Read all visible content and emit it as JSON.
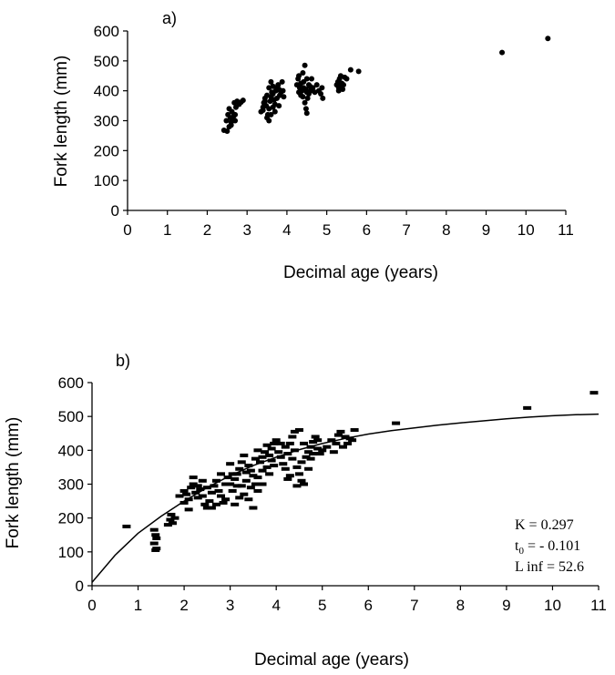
{
  "chart_data": [
    {
      "type": "scatter",
      "panel_label": "a)",
      "xlabel": "Decimal age (years)",
      "ylabel": "Fork length (mm)",
      "xlim": [
        0,
        11
      ],
      "ylim": [
        0,
        600
      ],
      "xticks": [
        "0",
        "1",
        "2",
        "3",
        "4",
        "5",
        "6",
        "7",
        "8",
        "9",
        "10",
        "11"
      ],
      "yticks": [
        "0",
        "100",
        "200",
        "300",
        "400",
        "500",
        "600"
      ],
      "marker": "dot",
      "points": [
        [
          2.42,
          268
        ],
        [
          2.5,
          265
        ],
        [
          2.55,
          280
        ],
        [
          2.48,
          300
        ],
        [
          2.6,
          295
        ],
        [
          2.52,
          320
        ],
        [
          2.58,
          310
        ],
        [
          2.62,
          330
        ],
        [
          2.55,
          340
        ],
        [
          2.65,
          305
        ],
        [
          2.7,
          320
        ],
        [
          2.72,
          345
        ],
        [
          2.68,
          360
        ],
        [
          2.75,
          365
        ],
        [
          2.8,
          355
        ],
        [
          2.85,
          362
        ],
        [
          2.9,
          368
        ],
        [
          2.6,
          285
        ],
        [
          2.66,
          315
        ],
        [
          2.7,
          300
        ],
        [
          3.35,
          330
        ],
        [
          3.4,
          345
        ],
        [
          3.42,
          360
        ],
        [
          3.45,
          375
        ],
        [
          3.5,
          385
        ],
        [
          3.48,
          350
        ],
        [
          3.52,
          320
        ],
        [
          3.55,
          340
        ],
        [
          3.58,
          365
        ],
        [
          3.6,
          380
        ],
        [
          3.62,
          395
        ],
        [
          3.55,
          410
        ],
        [
          3.6,
          430
        ],
        [
          3.65,
          390
        ],
        [
          3.68,
          370
        ],
        [
          3.7,
          355
        ],
        [
          3.72,
          400
        ],
        [
          3.75,
          410
        ],
        [
          3.78,
          420
        ],
        [
          3.8,
          405
        ],
        [
          3.82,
          385
        ],
        [
          3.85,
          395
        ],
        [
          3.88,
          430
        ],
        [
          3.9,
          400
        ],
        [
          3.92,
          380
        ],
        [
          3.5,
          310
        ],
        [
          3.55,
          300
        ],
        [
          3.6,
          320
        ],
        [
          3.65,
          345
        ],
        [
          3.7,
          330
        ],
        [
          3.4,
          335
        ],
        [
          3.45,
          365
        ],
        [
          3.65,
          415
        ],
        [
          3.75,
          375
        ],
        [
          3.8,
          350
        ],
        [
          4.25,
          420
        ],
        [
          4.28,
          440
        ],
        [
          4.3,
          395
        ],
        [
          4.32,
          410
        ],
        [
          4.35,
          385
        ],
        [
          4.4,
          460
        ],
        [
          4.42,
          430
        ],
        [
          4.45,
          485
        ],
        [
          4.48,
          405
        ],
        [
          4.5,
          395
        ],
        [
          4.52,
          375
        ],
        [
          4.55,
          420
        ],
        [
          4.58,
          415
        ],
        [
          4.6,
          400
        ],
        [
          4.62,
          440
        ],
        [
          4.45,
          360
        ],
        [
          4.48,
          340
        ],
        [
          4.5,
          325
        ],
        [
          4.4,
          380
        ],
        [
          4.35,
          425
        ],
        [
          4.3,
          450
        ],
        [
          4.55,
          390
        ],
        [
          4.65,
          410
        ],
        [
          4.7,
          395
        ],
        [
          4.75,
          420
        ],
        [
          4.5,
          440
        ],
        [
          4.38,
          400
        ],
        [
          4.42,
          410
        ],
        [
          4.8,
          400
        ],
        [
          4.85,
          390
        ],
        [
          4.88,
          410
        ],
        [
          4.9,
          375
        ],
        [
          5.25,
          420
        ],
        [
          5.28,
          430
        ],
        [
          5.3,
          410
        ],
        [
          5.32,
          440
        ],
        [
          5.35,
          450
        ],
        [
          5.38,
          425
        ],
        [
          5.4,
          405
        ],
        [
          5.42,
          420
        ],
        [
          5.45,
          445
        ],
        [
          5.5,
          440
        ],
        [
          5.3,
          400
        ],
        [
          5.35,
          415
        ],
        [
          5.6,
          470
        ],
        [
          5.8,
          465
        ],
        [
          9.4,
          528
        ],
        [
          10.55,
          575
        ]
      ]
    },
    {
      "type": "scatter",
      "panel_label": "b)",
      "xlabel": "Decimal age (years)",
      "ylabel": "Fork length (mm)",
      "xlim": [
        0,
        11
      ],
      "ylim": [
        0,
        600
      ],
      "xticks": [
        "0",
        "1",
        "2",
        "3",
        "4",
        "5",
        "6",
        "7",
        "8",
        "9",
        "10",
        "11"
      ],
      "yticks": [
        "0",
        "100",
        "200",
        "300",
        "400",
        "500",
        "600"
      ],
      "marker": "dash",
      "annotations": {
        "k": "K = 0.297",
        "t0_prefix": "t",
        "t0_sub": "0",
        "t0_suffix": " = - 0.101",
        "linf": "L inf = 52.6"
      },
      "fit_curve": [
        [
          0,
          10
        ],
        [
          0.5,
          90
        ],
        [
          1,
          155
        ],
        [
          1.5,
          205
        ],
        [
          2,
          250
        ],
        [
          2.5,
          290
        ],
        [
          3,
          325
        ],
        [
          3.5,
          355
        ],
        [
          4,
          380
        ],
        [
          4.5,
          402
        ],
        [
          5,
          420
        ],
        [
          5.5,
          435
        ],
        [
          6,
          448
        ],
        [
          6.5,
          458
        ],
        [
          7,
          466
        ],
        [
          7.5,
          474
        ],
        [
          8,
          481
        ],
        [
          8.5,
          487
        ],
        [
          9,
          493
        ],
        [
          9.5,
          498
        ],
        [
          10,
          502
        ],
        [
          10.5,
          505
        ],
        [
          11,
          507
        ]
      ],
      "points": [
        [
          0.75,
          175
        ],
        [
          1.35,
          165
        ],
        [
          1.38,
          150
        ],
        [
          1.4,
          140
        ],
        [
          1.35,
          125
        ],
        [
          1.4,
          110
        ],
        [
          1.38,
          105
        ],
        [
          1.65,
          180
        ],
        [
          1.7,
          195
        ],
        [
          1.75,
          185
        ],
        [
          1.8,
          200
        ],
        [
          1.72,
          210
        ],
        [
          1.9,
          265
        ],
        [
          2.0,
          280
        ],
        [
          2.05,
          270
        ],
        [
          2.1,
          255
        ],
        [
          2.15,
          290
        ],
        [
          2.2,
          300
        ],
        [
          2.25,
          275
        ],
        [
          2.3,
          260
        ],
        [
          2.35,
          285
        ],
        [
          2.4,
          265
        ],
        [
          2.45,
          240
        ],
        [
          2.5,
          230
        ],
        [
          2.55,
          250
        ],
        [
          2.6,
          275
        ],
        [
          2.65,
          295
        ],
        [
          2.7,
          310
        ],
        [
          2.75,
          280
        ],
        [
          2.8,
          265
        ],
        [
          2.85,
          245
        ],
        [
          2.9,
          300
        ],
        [
          2.95,
          320
        ],
        [
          2.0,
          245
        ],
        [
          2.1,
          225
        ],
        [
          2.2,
          320
        ],
        [
          2.4,
          310
        ],
        [
          2.6,
          230
        ],
        [
          2.8,
          330
        ],
        [
          2.3,
          295
        ],
        [
          2.5,
          290
        ],
        [
          2.7,
          240
        ],
        [
          2.9,
          255
        ],
        [
          3.0,
          300
        ],
        [
          3.05,
          280
        ],
        [
          3.1,
          315
        ],
        [
          3.15,
          330
        ],
        [
          3.2,
          345
        ],
        [
          3.25,
          295
        ],
        [
          3.3,
          270
        ],
        [
          3.35,
          310
        ],
        [
          3.4,
          355
        ],
        [
          3.45,
          340
        ],
        [
          3.5,
          325
        ],
        [
          3.55,
          300
        ],
        [
          3.6,
          280
        ],
        [
          3.65,
          365
        ],
        [
          3.7,
          380
        ],
        [
          3.75,
          395
        ],
        [
          3.8,
          350
        ],
        [
          3.85,
          330
        ],
        [
          3.9,
          405
        ],
        [
          3.95,
          420
        ],
        [
          3.0,
          360
        ],
        [
          3.1,
          240
        ],
        [
          3.2,
          260
        ],
        [
          3.3,
          385
        ],
        [
          3.4,
          255
        ],
        [
          3.5,
          230
        ],
        [
          3.6,
          400
        ],
        [
          3.7,
          300
        ],
        [
          3.8,
          415
        ],
        [
          3.9,
          370
        ],
        [
          3.55,
          375
        ],
        [
          3.45,
          290
        ],
        [
          3.25,
          365
        ],
        [
          3.15,
          295
        ],
        [
          3.05,
          330
        ],
        [
          3.7,
          340
        ],
        [
          3.85,
          385
        ],
        [
          3.95,
          355
        ],
        [
          3.35,
          335
        ],
        [
          3.6,
          320
        ],
        [
          4.0,
          430
        ],
        [
          4.05,
          395
        ],
        [
          4.1,
          380
        ],
        [
          4.15,
          360
        ],
        [
          4.2,
          410
        ],
        [
          4.25,
          390
        ],
        [
          4.3,
          420
        ],
        [
          4.35,
          440
        ],
        [
          4.4,
          400
        ],
        [
          4.45,
          350
        ],
        [
          4.5,
          330
        ],
        [
          4.55,
          310
        ],
        [
          4.6,
          300
        ],
        [
          4.65,
          380
        ],
        [
          4.7,
          395
        ],
        [
          4.75,
          410
        ],
        [
          4.8,
          425
        ],
        [
          4.85,
          440
        ],
        [
          4.9,
          405
        ],
        [
          4.95,
          390
        ],
        [
          4.1,
          420
        ],
        [
          4.2,
          345
        ],
        [
          4.3,
          325
        ],
        [
          4.4,
          455
        ],
        [
          4.5,
          460
        ],
        [
          4.6,
          420
        ],
        [
          4.7,
          345
        ],
        [
          4.8,
          390
        ],
        [
          4.9,
          430
        ],
        [
          4.35,
          375
        ],
        [
          4.55,
          365
        ],
        [
          4.75,
          375
        ],
        [
          4.25,
          315
        ],
        [
          4.45,
          295
        ],
        [
          5.0,
          400
        ],
        [
          5.1,
          410
        ],
        [
          5.2,
          430
        ],
        [
          5.3,
          420
        ],
        [
          5.4,
          455
        ],
        [
          5.5,
          440
        ],
        [
          5.6,
          435
        ],
        [
          5.7,
          460
        ],
        [
          5.25,
          395
        ],
        [
          5.45,
          410
        ],
        [
          5.55,
          420
        ],
        [
          5.35,
          445
        ],
        [
          5.65,
          430
        ],
        [
          6.6,
          480
        ],
        [
          9.45,
          525
        ],
        [
          10.9,
          570
        ]
      ]
    }
  ]
}
